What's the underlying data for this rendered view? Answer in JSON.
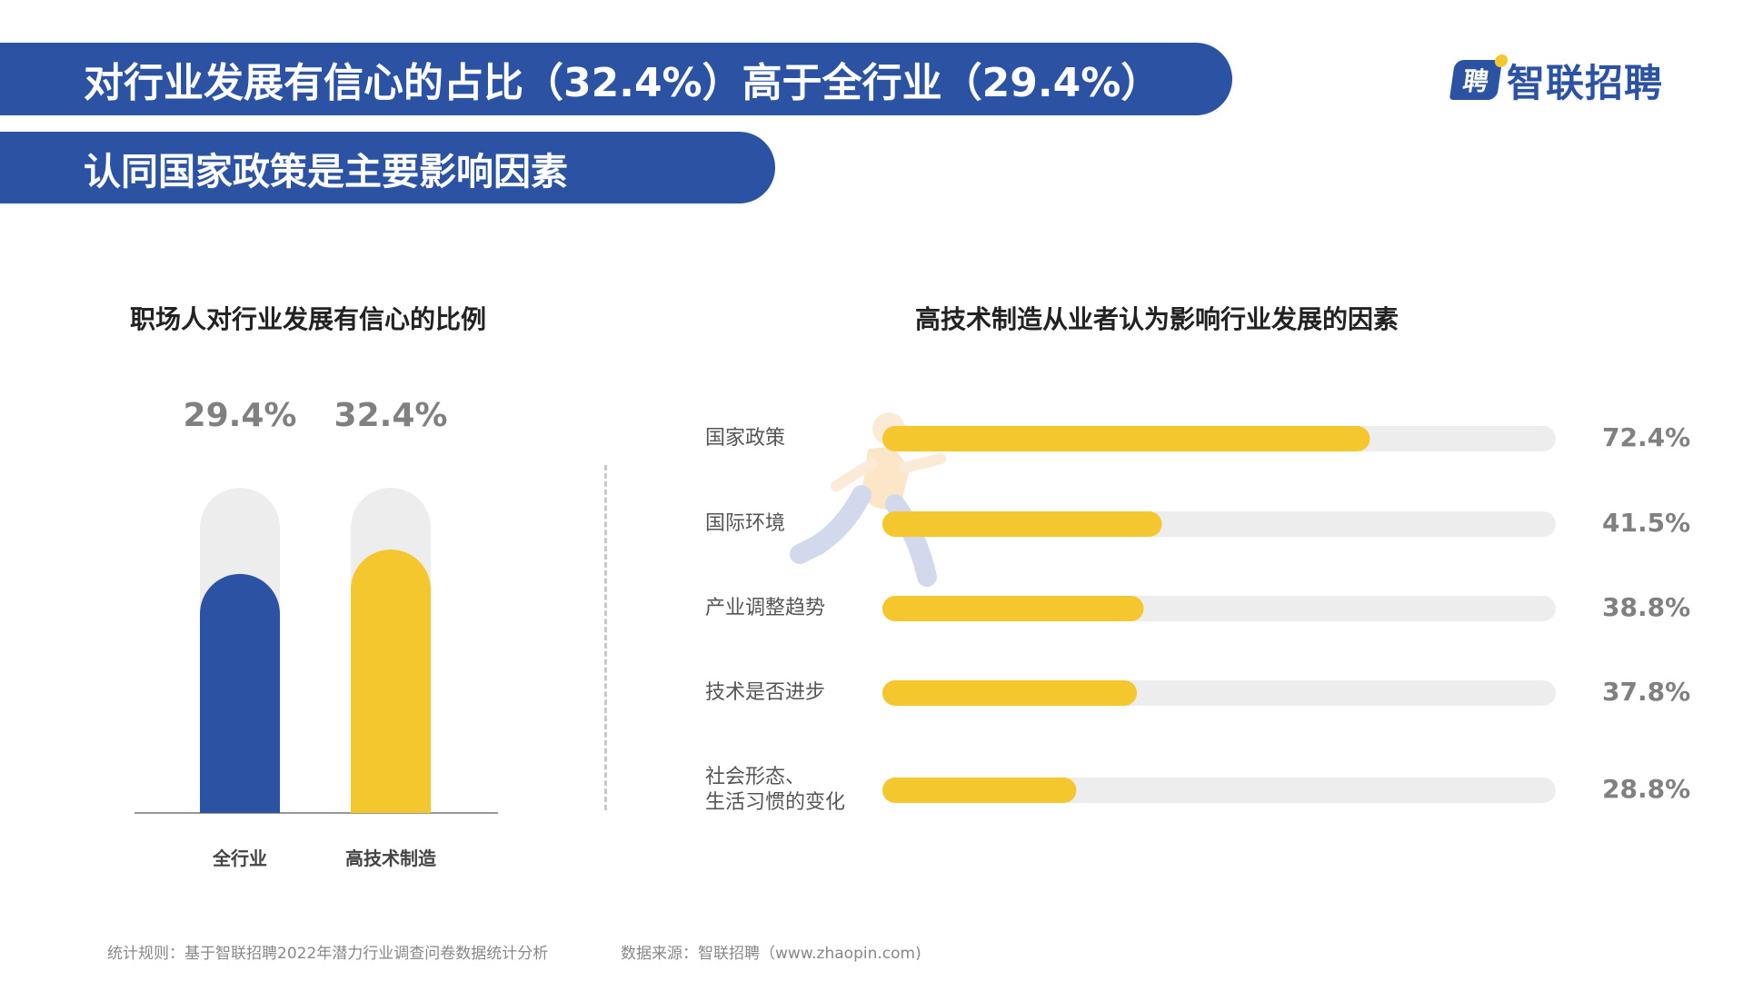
{
  "header": {
    "headline": "对行业发展有信心的占比（32.4%）高于全行业（29.4%）",
    "subheadline": "认同国家政策是主要影响因素"
  },
  "logo": {
    "text": "智联招聘",
    "mark_text": "聘"
  },
  "colors": {
    "brand_blue": "#2c52a3",
    "accent_yellow": "#f4c72e",
    "track_gray": "#ededed"
  },
  "footer": {
    "rule": "统计规则：基于智联招聘2022年潜力行业调查问卷数据统计分析",
    "source": "数据来源：智联招聘（www.zhaopin.com)"
  },
  "chart_data": [
    {
      "type": "bar",
      "title": "职场人对行业发展有信心的比例",
      "categories": [
        "全行业",
        "高技术制造"
      ],
      "values": [
        29.4,
        32.4
      ],
      "value_labels": [
        "29.4%",
        "32.4%"
      ],
      "colors": [
        "#2c52a3",
        "#f4c72e"
      ],
      "ylim": [
        0,
        40
      ],
      "xlabel": "",
      "ylabel": ""
    },
    {
      "type": "bar",
      "orientation": "horizontal",
      "title": "高技术制造从业者认为影响行业发展的因素",
      "categories": [
        "国家政策",
        "国际环境",
        "产业调整趋势",
        "技术是否进步",
        "社会形态、\n生活习惯的变化"
      ],
      "values": [
        72.4,
        41.5,
        38.8,
        37.8,
        28.8
      ],
      "value_labels": [
        "72.4%",
        "41.5%",
        "38.8%",
        "37.8%",
        "28.8%"
      ],
      "xlim": [
        0,
        100
      ],
      "xlabel": "",
      "ylabel": ""
    }
  ]
}
